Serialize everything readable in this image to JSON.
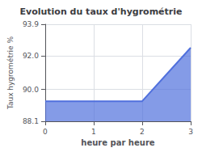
{
  "chart_data": {
    "type": "area",
    "title": "Evolution du taux d'hygrométrie",
    "xlabel": "heure par heure",
    "ylabel": "Taux hygrométrie %",
    "x": [
      0,
      2,
      3
    ],
    "values": [
      89.3,
      89.3,
      92.5
    ],
    "xlim": [
      0,
      3
    ],
    "xticks": [
      0,
      1,
      2,
      3
    ],
    "ylim": [
      88.1,
      93.9
    ],
    "yticks": [
      88.1,
      {
        "value": 90.0,
        "label": "90.0"
      },
      {
        "value": 92.0,
        "label": "92.0"
      },
      93.9
    ],
    "grid": true
  }
}
